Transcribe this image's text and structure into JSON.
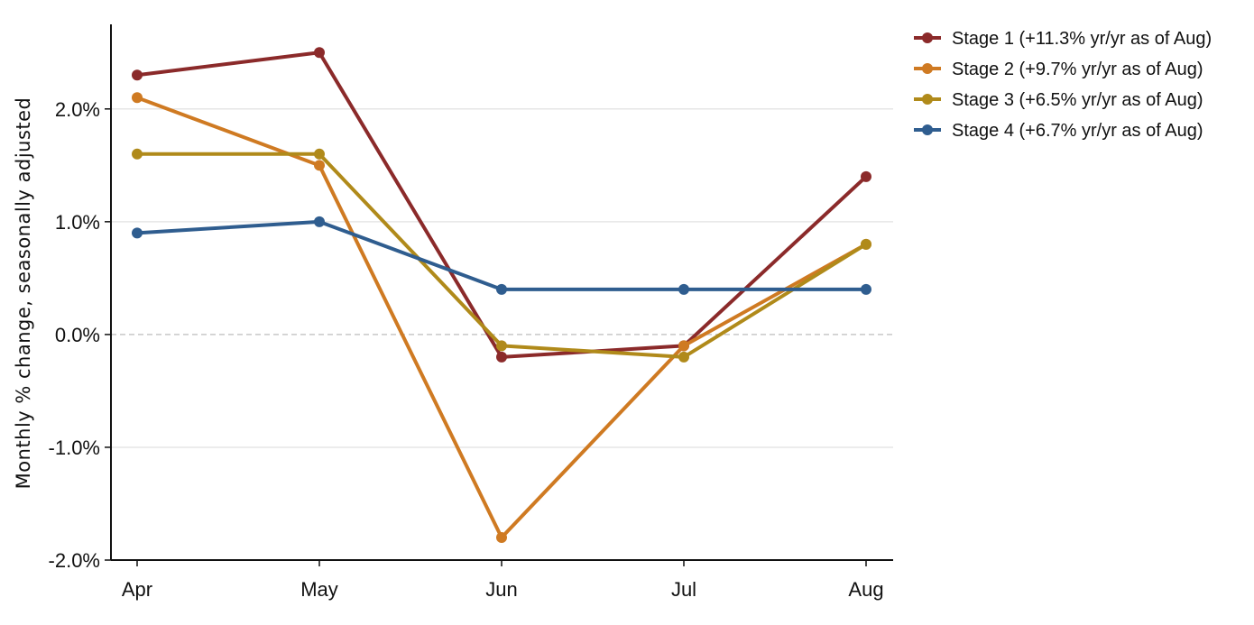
{
  "chart_data": {
    "type": "line",
    "categories": [
      "Apr",
      "May",
      "Jun",
      "Jul",
      "Aug"
    ],
    "series": [
      {
        "name": "Stage 1  (+11.3% yr/yr as of Aug)",
        "color": "#8b2a2a",
        "values": [
          2.3,
          2.5,
          -0.2,
          -0.1,
          1.4
        ]
      },
      {
        "name": "Stage 2  (+9.7% yr/yr as of Aug)",
        "color": "#cf7a22",
        "values": [
          2.1,
          1.5,
          -1.8,
          -0.1,
          0.8
        ]
      },
      {
        "name": "Stage 3  (+6.5% yr/yr as of Aug)",
        "color": "#b08a1a",
        "values": [
          1.6,
          1.6,
          -0.1,
          -0.2,
          0.8
        ]
      },
      {
        "name": "Stage 4  (+6.7% yr/yr as of Aug)",
        "color": "#2f5d8f",
        "values": [
          0.9,
          1.0,
          0.4,
          0.4,
          0.4
        ]
      }
    ],
    "ylabel": "Monthly % change, seasonally adjusted",
    "xlabel": "",
    "ylim": [
      -2.0,
      2.75
    ],
    "yticks": [
      -2.0,
      -1.0,
      0.0,
      1.0,
      2.0
    ],
    "ytick_labels": [
      "-2.0%",
      "-1.0%",
      "0.0%",
      "1.0%",
      "2.0%"
    ],
    "grid": "horizontal",
    "zero_line": "dashed",
    "legend_position": "top-right, outside plot"
  }
}
